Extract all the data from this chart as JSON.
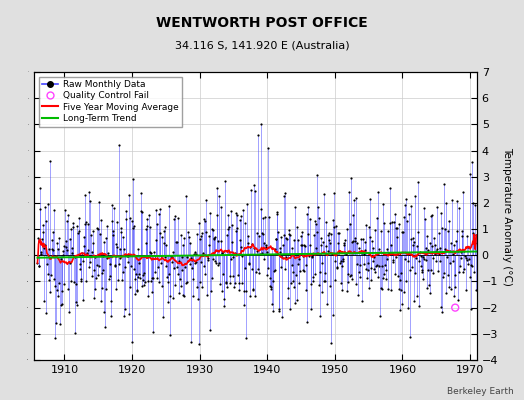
{
  "title": "WENTWORTH POST OFFICE",
  "subtitle": "34.116 S, 141.920 E (Australia)",
  "ylabel": "Temperature Anomaly (°C)",
  "credit": "Berkeley Earth",
  "ylim": [
    -4,
    7
  ],
  "yticks": [
    -4,
    -3,
    -2,
    -1,
    0,
    1,
    2,
    3,
    4,
    5,
    6,
    7
  ],
  "xlim": [
    1905.5,
    1971.0
  ],
  "xticks": [
    1910,
    1920,
    1930,
    1940,
    1950,
    1960,
    1970
  ],
  "bg_color": "#e0e0e0",
  "plot_bg_color": "#ffffff",
  "line_color": "#4444ff",
  "dot_color": "#000000",
  "ma_color": "#ff0000",
  "trend_color": "#00bb00",
  "qc_color": "#ff44ff",
  "seed": 12345,
  "n_months": 780,
  "start_year": 1906.0
}
